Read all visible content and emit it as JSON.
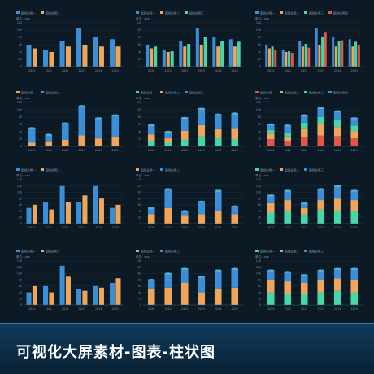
{
  "banner": {
    "title": "可视化大屏素材-图表-柱状图"
  },
  "colors": {
    "blue": "#3a8fd6",
    "blueLight": "#5fc6ea",
    "orange": "#f0a65a",
    "green": "#46d6a8",
    "red": "#e0564a",
    "axisText": "#7e93a6",
    "grid": "#1f3244"
  },
  "chart_data": [
    {
      "type": "bar",
      "legend": [
        "图例说明一",
        "图例说明二"
      ],
      "unit": "单位：xxx",
      "categories": [
        "2020",
        "2021",
        "2022",
        "2023",
        "2024",
        "2025"
      ],
      "ylim": [
        0,
        120
      ],
      "series": [
        {
          "colorKey": "blue",
          "values": [
            60,
            45,
            70,
            105,
            80,
            75
          ]
        },
        {
          "colorKey": "orange",
          "values": [
            50,
            40,
            55,
            60,
            55,
            55
          ]
        }
      ]
    },
    {
      "type": "bar",
      "legend": [
        "图例说明一",
        "图例说明二",
        "图例说明三"
      ],
      "unit": "单位：xxx",
      "categories": [
        "2020",
        "2021",
        "2022",
        "2023",
        "2024",
        "2025"
      ],
      "ylim": [
        0,
        120
      ],
      "series": [
        {
          "colorKey": "blue",
          "values": [
            60,
            45,
            70,
            105,
            80,
            75
          ]
        },
        {
          "colorKey": "orange",
          "values": [
            50,
            40,
            55,
            60,
            55,
            55
          ]
        },
        {
          "colorKey": "green",
          "values": [
            55,
            42,
            62,
            82,
            70,
            68
          ]
        }
      ]
    },
    {
      "type": "bar",
      "legend": [
        "图例说明一",
        "图例说明二",
        "图例说明三",
        "图例说明四"
      ],
      "unit": "单位：xxx",
      "categories": [
        "2020",
        "2021",
        "2022",
        "2023",
        "2024",
        "2025"
      ],
      "ylim": [
        0,
        120
      ],
      "series": [
        {
          "colorKey": "blue",
          "values": [
            60,
            45,
            70,
            105,
            80,
            75
          ]
        },
        {
          "colorKey": "orange",
          "values": [
            50,
            40,
            55,
            60,
            55,
            55
          ]
        },
        {
          "colorKey": "green",
          "values": [
            55,
            42,
            62,
            82,
            70,
            68
          ]
        },
        {
          "colorKey": "red",
          "values": [
            45,
            38,
            52,
            95,
            72,
            60
          ]
        }
      ]
    },
    {
      "type": "bar",
      "stacked": true,
      "legend": [
        "图例说明一",
        "图例说明二"
      ],
      "unit": "单位：xxx",
      "categories": [
        "2020",
        "2021",
        "2022",
        "2023",
        "2024",
        "2025"
      ],
      "ylim": [
        0,
        120
      ],
      "series": [
        {
          "colorKey": "orange",
          "values": [
            10,
            12,
            18,
            30,
            22,
            25
          ]
        },
        {
          "colorKey": "blue",
          "values": [
            40,
            20,
            45,
            80,
            55,
            60
          ]
        }
      ]
    },
    {
      "type": "bar",
      "stacked": true,
      "legend": [
        "图例说明一",
        "图例说明二",
        "图例说明三"
      ],
      "unit": "单位：xxx",
      "categories": [
        "2020",
        "2021",
        "2022",
        "2023",
        "2024",
        "2025"
      ],
      "ylim": [
        0,
        120
      ],
      "series": [
        {
          "colorKey": "green",
          "values": [
            15,
            10,
            18,
            28,
            22,
            20
          ]
        },
        {
          "colorKey": "orange",
          "values": [
            18,
            12,
            25,
            30,
            25,
            28
          ]
        },
        {
          "colorKey": "blue",
          "values": [
            25,
            18,
            35,
            45,
            40,
            42
          ]
        }
      ]
    },
    {
      "type": "bar",
      "stacked": true,
      "legend": [
        "图例说明一",
        "图例说明二",
        "图例说明三",
        "图例说明四"
      ],
      "unit": "单位：xxx",
      "categories": [
        "2020",
        "2021",
        "2022",
        "2023",
        "2024",
        "2025"
      ],
      "ylim": [
        0,
        120
      ],
      "series": [
        {
          "colorKey": "red",
          "values": [
            20,
            15,
            25,
            30,
            28,
            22
          ]
        },
        {
          "colorKey": "orange",
          "values": [
            15,
            12,
            22,
            30,
            25,
            20
          ]
        },
        {
          "colorKey": "green",
          "values": [
            10,
            10,
            18,
            20,
            18,
            15
          ]
        },
        {
          "colorKey": "blue",
          "values": [
            15,
            20,
            20,
            25,
            25,
            20
          ]
        }
      ]
    },
    {
      "type": "bar",
      "legend": [
        "图例说明一",
        "图例说明二"
      ],
      "unit": "单位：xxx",
      "categories": [
        "2020",
        "2021",
        "2022",
        "2023",
        "2024",
        "2025"
      ],
      "ylim": [
        0,
        140
      ],
      "series": [
        {
          "colorKey": "blue",
          "values": [
            50,
            70,
            120,
            70,
            120,
            50
          ]
        },
        {
          "colorKey": "orange",
          "values": [
            60,
            45,
            70,
            90,
            80,
            60
          ]
        }
      ]
    },
    {
      "type": "bar",
      "stacked": true,
      "legend": [
        "图例说明一",
        "图例说明二"
      ],
      "unit": "单位：xxx",
      "categories": [
        "2020",
        "2021",
        "2022",
        "2023",
        "2024",
        "2025"
      ],
      "ylim": [
        0,
        140
      ],
      "series": [
        {
          "colorKey": "orange",
          "values": [
            30,
            50,
            25,
            30,
            40,
            30
          ]
        },
        {
          "colorKey": "blue",
          "values": [
            20,
            60,
            15,
            40,
            65,
            25
          ]
        }
      ]
    },
    {
      "type": "bar",
      "stacked": true,
      "legend": [
        "图例说明一",
        "图例说明二",
        "图例说明三"
      ],
      "unit": "单位：xxx",
      "categories": [
        "2020",
        "2021",
        "2022",
        "2023",
        "2024",
        "2025"
      ],
      "ylim": [
        0,
        140
      ],
      "series": [
        {
          "colorKey": "green",
          "values": [
            35,
            40,
            30,
            45,
            40,
            40
          ]
        },
        {
          "colorKey": "orange",
          "values": [
            30,
            35,
            20,
            30,
            40,
            35
          ]
        },
        {
          "colorKey": "blue",
          "values": [
            25,
            30,
            15,
            35,
            40,
            30
          ]
        }
      ]
    },
    {
      "type": "bar",
      "legend": [
        "图例说明一",
        "图例说明二"
      ],
      "unit": "单位：xxx",
      "categories": [
        "2020",
        "2021",
        "2022",
        "2023",
        "2024",
        "2025"
      ],
      "ylim": [
        0,
        140
      ],
      "series": [
        {
          "colorKey": "blue",
          "values": [
            40,
            60,
            125,
            50,
            60,
            70
          ]
        },
        {
          "colorKey": "orange",
          "values": [
            60,
            40,
            90,
            45,
            55,
            85
          ]
        }
      ]
    },
    {
      "type": "bar",
      "stacked": true,
      "legend": [
        "图例说明一",
        "图例说明二"
      ],
      "unit": "单位：xxx",
      "categories": [
        "2020",
        "2021",
        "2022",
        "2023",
        "2024",
        "2025"
      ],
      "ylim": [
        0,
        140
      ],
      "series": [
        {
          "colorKey": "orange",
          "values": [
            50,
            55,
            70,
            40,
            50,
            55
          ]
        },
        {
          "colorKey": "blue",
          "values": [
            30,
            45,
            45,
            50,
            60,
            60
          ]
        }
      ]
    },
    {
      "type": "bar",
      "stacked": true,
      "legend": [
        "图例说明一",
        "图例说明二",
        "图例说明三"
      ],
      "unit": "单位：xxx",
      "categories": [
        "2020",
        "2021",
        "2022",
        "2023",
        "2024",
        "2025"
      ],
      "ylim": [
        0,
        140
      ],
      "series": [
        {
          "colorKey": "green",
          "values": [
            40,
            35,
            35,
            40,
            45,
            40
          ]
        },
        {
          "colorKey": "orange",
          "values": [
            40,
            40,
            35,
            40,
            40,
            40
          ]
        },
        {
          "colorKey": "blue",
          "values": [
            30,
            30,
            25,
            30,
            30,
            35
          ]
        }
      ]
    }
  ]
}
